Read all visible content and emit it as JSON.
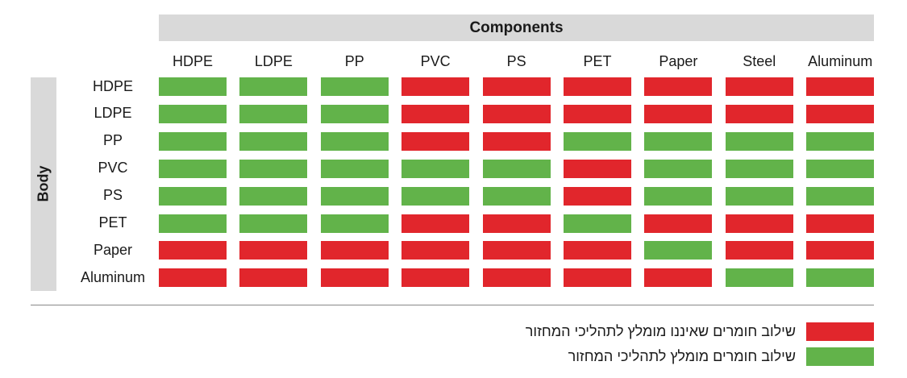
{
  "chart_data": {
    "type": "heatmap",
    "title": "Components",
    "row_axis_label": "Body",
    "columns": [
      "HDPE",
      "LDPE",
      "PP",
      "PVC",
      "PS",
      "PET",
      "Paper",
      "Steel",
      "Aluminum"
    ],
    "rows": [
      "HDPE",
      "LDPE",
      "PP",
      "PVC",
      "PS",
      "PET",
      "Paper",
      "Aluminum"
    ],
    "values": [
      [
        "G",
        "G",
        "G",
        "R",
        "R",
        "R",
        "R",
        "R",
        "R"
      ],
      [
        "G",
        "G",
        "G",
        "R",
        "R",
        "R",
        "R",
        "R",
        "R"
      ],
      [
        "G",
        "G",
        "G",
        "R",
        "R",
        "G",
        "G",
        "G",
        "G"
      ],
      [
        "G",
        "G",
        "G",
        "G",
        "G",
        "R",
        "G",
        "G",
        "G"
      ],
      [
        "G",
        "G",
        "G",
        "G",
        "G",
        "R",
        "G",
        "G",
        "G"
      ],
      [
        "G",
        "G",
        "G",
        "R",
        "R",
        "G",
        "R",
        "R",
        "R"
      ],
      [
        "R",
        "R",
        "R",
        "R",
        "R",
        "R",
        "G",
        "R",
        "R"
      ],
      [
        "R",
        "R",
        "R",
        "R",
        "R",
        "R",
        "R",
        "G",
        "G"
      ]
    ],
    "legend": [
      {
        "key": "R",
        "color": "#e1262c",
        "label": "שילוב חומרים שאיננו מומלץ לתהליכי המחזור"
      },
      {
        "key": "G",
        "color": "#62b34a",
        "label": "שילוב חומרים מומלץ לתהליכי המחזור"
      }
    ]
  },
  "colors": {
    "red": "#e1262c",
    "green": "#62b34a",
    "header_bg": "#d9d9d9",
    "divider": "#888888"
  }
}
